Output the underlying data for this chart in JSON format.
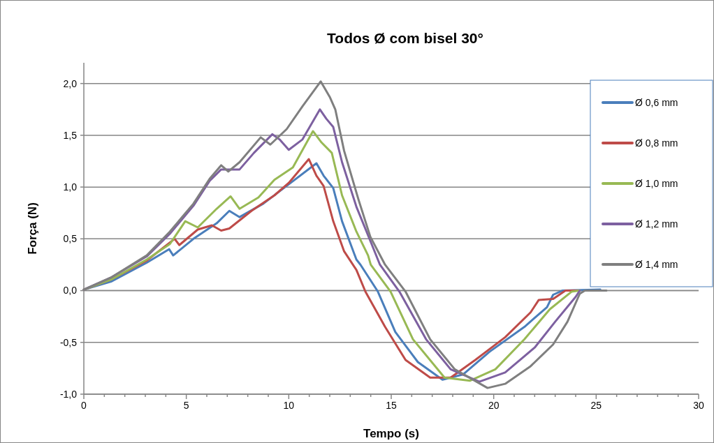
{
  "chart_data": {
    "type": "line",
    "title": "Todos Ø com bisel 30°",
    "xlabel": "Tempo (s)",
    "ylabel": "Força (N)",
    "xlim": [
      0,
      30
    ],
    "ylim": [
      -1,
      2.2
    ],
    "xticks": [
      0,
      {
        "value": 1,
        "label": null
      },
      {
        "value": 2,
        "label": null
      },
      {
        "value": 3,
        "label": null
      },
      {
        "value": 4,
        "label": null
      },
      5,
      {
        "value": 6,
        "label": null
      },
      {
        "value": 7,
        "label": null
      },
      {
        "value": 8,
        "label": null
      },
      {
        "value": 9,
        "label": null
      },
      10,
      {
        "value": 11,
        "label": null
      },
      {
        "value": 12,
        "label": null
      },
      {
        "value": 13,
        "label": null
      },
      {
        "value": 14,
        "label": null
      },
      15,
      {
        "value": 16,
        "label": null
      },
      {
        "value": 17,
        "label": null
      },
      {
        "value": 18,
        "label": null
      },
      {
        "value": 19,
        "label": null
      },
      20,
      {
        "value": 21,
        "label": null
      },
      {
        "value": 22,
        "label": null
      },
      {
        "value": 23,
        "label": null
      },
      {
        "value": 24,
        "label": null
      },
      25,
      {
        "value": 26,
        "label": null
      },
      {
        "value": 27,
        "label": null
      },
      {
        "value": 28,
        "label": null
      },
      {
        "value": 29,
        "label": null
      },
      30
    ],
    "yticks": [
      {
        "value": -1,
        "label": "-1,0"
      },
      {
        "value": -0.5,
        "label": "-0,5"
      },
      {
        "value": 0,
        "label": "0,0"
      },
      {
        "value": 0.5,
        "label": "0,5"
      },
      {
        "value": 1,
        "label": "1,0"
      },
      {
        "value": 1.5,
        "label": "1,5"
      },
      {
        "value": 2,
        "label": "2,0"
      }
    ],
    "grid": "y",
    "legend": "right",
    "marker": "none",
    "line_style": "solid",
    "series": [
      {
        "name": "Ø 0,6 mm",
        "color": "#4a7ebb",
        "x": [
          0,
          1.36,
          3.07,
          4.16,
          4.36,
          5.35,
          6.48,
          7.1,
          7.6,
          8.76,
          9.89,
          11.35,
          11.7,
          12.17,
          12.6,
          13.3,
          13.5,
          14.35,
          15.2,
          16.3,
          17.5,
          18.5,
          19.8,
          21.5,
          22.6,
          22.9,
          23.35,
          25.2
        ],
        "values": [
          0.01,
          0.09,
          0.27,
          0.4,
          0.34,
          0.5,
          0.65,
          0.77,
          0.71,
          0.84,
          1.01,
          1.23,
          1.11,
          0.99,
          0.67,
          0.3,
          0.25,
          -0.01,
          -0.4,
          -0.69,
          -0.86,
          -0.81,
          -0.59,
          -0.35,
          -0.16,
          -0.04,
          0,
          0.01
        ]
      },
      {
        "name": "Ø 0,8 mm",
        "color": "#be4b48",
        "x": [
          0,
          1.36,
          3.07,
          4.43,
          4.66,
          5.56,
          6.25,
          6.7,
          7.1,
          8.18,
          9.3,
          10,
          10.98,
          11.35,
          11.7,
          12.17,
          12.7,
          13.3,
          13.74,
          14.7,
          15.7,
          16.9,
          17.9,
          19.1,
          20.56,
          21.8,
          22.2,
          22.9,
          23.5,
          24.2
        ],
        "values": [
          0.01,
          0.11,
          0.29,
          0.5,
          0.44,
          0.59,
          0.63,
          0.58,
          0.6,
          0.77,
          0.92,
          1.04,
          1.27,
          1.11,
          1.01,
          0.67,
          0.38,
          0.2,
          -0.01,
          -0.35,
          -0.67,
          -0.84,
          -0.84,
          -0.67,
          -0.45,
          -0.21,
          -0.09,
          -0.08,
          0,
          0
        ]
      },
      {
        "name": "Ø 1,0 mm",
        "color": "#98b954",
        "x": [
          0,
          1.36,
          3.07,
          4.2,
          4.95,
          5.56,
          6.48,
          7.16,
          7.6,
          8.52,
          9.3,
          10.2,
          11.18,
          11.6,
          12.1,
          12.6,
          13.3,
          13.87,
          14.0,
          14.97,
          16.06,
          17.6,
          18.85,
          20.08,
          21.5,
          22.74,
          23.8,
          24.2
        ],
        "values": [
          0.01,
          0.11,
          0.3,
          0.45,
          0.67,
          0.61,
          0.79,
          0.91,
          0.79,
          0.9,
          1.07,
          1.19,
          1.54,
          1.43,
          1.33,
          0.92,
          0.57,
          0.34,
          0.25,
          -0.01,
          -0.47,
          -0.84,
          -0.87,
          -0.76,
          -0.47,
          -0.18,
          -0.01,
          0
        ]
      },
      {
        "name": "Ø 1,2 mm",
        "color": "#7d60a0",
        "x": [
          0,
          1.36,
          3.07,
          4.2,
          5.35,
          6.14,
          6.7,
          7.6,
          8.3,
          9.2,
          9.55,
          10,
          10.67,
          11.52,
          11.83,
          12.17,
          12.6,
          13.3,
          14,
          14.45,
          15.4,
          16.7,
          17.9,
          19.3,
          20.56,
          22,
          23,
          24,
          24.2
        ],
        "values": [
          0.01,
          0.13,
          0.33,
          0.55,
          0.82,
          1.06,
          1.17,
          1.17,
          1.33,
          1.51,
          1.46,
          1.36,
          1.46,
          1.75,
          1.66,
          1.58,
          1.24,
          0.81,
          0.47,
          0.25,
          -0.01,
          -0.47,
          -0.76,
          -0.88,
          -0.79,
          -0.55,
          -0.3,
          -0.06,
          0
        ]
      },
      {
        "name": "Ø 1,4 mm",
        "color": "#7f7f7f",
        "x": [
          0,
          1.36,
          3.07,
          4.2,
          5.35,
          6.14,
          6.7,
          7.05,
          7.6,
          8.63,
          9.1,
          9.9,
          10.67,
          11.56,
          12,
          12.27,
          12.7,
          13.4,
          13.98,
          14.7,
          15.7,
          16.9,
          18.1,
          19.7,
          20.56,
          21.8,
          22.9,
          23.6,
          24.2,
          24.45,
          25.5
        ],
        "values": [
          0.01,
          0.13,
          0.34,
          0.57,
          0.84,
          1.08,
          1.21,
          1.15,
          1.24,
          1.48,
          1.41,
          1.56,
          1.78,
          2.02,
          1.87,
          1.75,
          1.35,
          0.88,
          0.52,
          0.25,
          -0.01,
          -0.47,
          -0.76,
          -0.94,
          -0.9,
          -0.73,
          -0.52,
          -0.3,
          -0.03,
          0,
          0
        ]
      }
    ]
  }
}
